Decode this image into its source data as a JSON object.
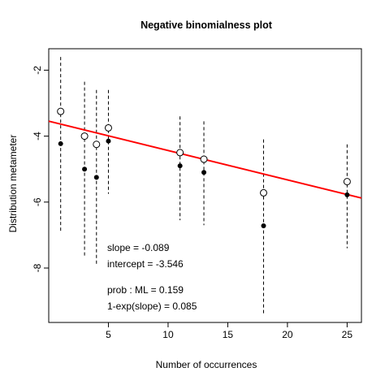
{
  "chart_data": {
    "type": "scatter",
    "title": "Negative binomialness plot",
    "xlabel": "Number of occurrences",
    "ylabel": "Distribution metameter",
    "xlim": [
      0,
      26.2
    ],
    "ylim": [
      -9.65,
      -1.35
    ],
    "xticks": [
      5,
      10,
      15,
      20,
      25
    ],
    "yticks": [
      -2,
      -4,
      -6,
      -8
    ],
    "grid": false,
    "series": [
      {
        "marker": "open-circle",
        "x": [
          1,
          3,
          4,
          5,
          11,
          13,
          18,
          25
        ],
        "y": [
          -3.25,
          -4.0,
          -4.25,
          -3.75,
          -4.5,
          -4.7,
          -5.72,
          -5.38
        ]
      },
      {
        "marker": "filled-dot",
        "x": [
          1,
          3,
          4,
          5,
          11,
          13,
          18,
          25
        ],
        "y": [
          -4.23,
          -5.0,
          -5.25,
          -4.15,
          -4.9,
          -5.1,
          -6.72,
          -5.78
        ]
      }
    ],
    "confidence_intervals": [
      {
        "x": 1,
        "lower": -6.9,
        "upper": -1.6
      },
      {
        "x": 3,
        "lower": -7.65,
        "upper": -2.35
      },
      {
        "x": 4,
        "lower": -7.9,
        "upper": -2.6
      },
      {
        "x": 5,
        "lower": -5.75,
        "upper": -2.6
      },
      {
        "x": 11,
        "lower": -6.55,
        "upper": -3.4
      },
      {
        "x": 13,
        "lower": -6.7,
        "upper": -3.55
      },
      {
        "x": 18,
        "lower": -9.4,
        "upper": -4.1
      },
      {
        "x": 25,
        "lower": -7.4,
        "upper": -4.25
      }
    ],
    "fit_line": {
      "slope": -0.089,
      "intercept": -3.546,
      "color": "#ff0000"
    },
    "annotations": [
      "slope = -0.089",
      "intercept = -3.546",
      "prob : ML = 0.159",
      "1-exp(slope) = 0.085"
    ]
  }
}
